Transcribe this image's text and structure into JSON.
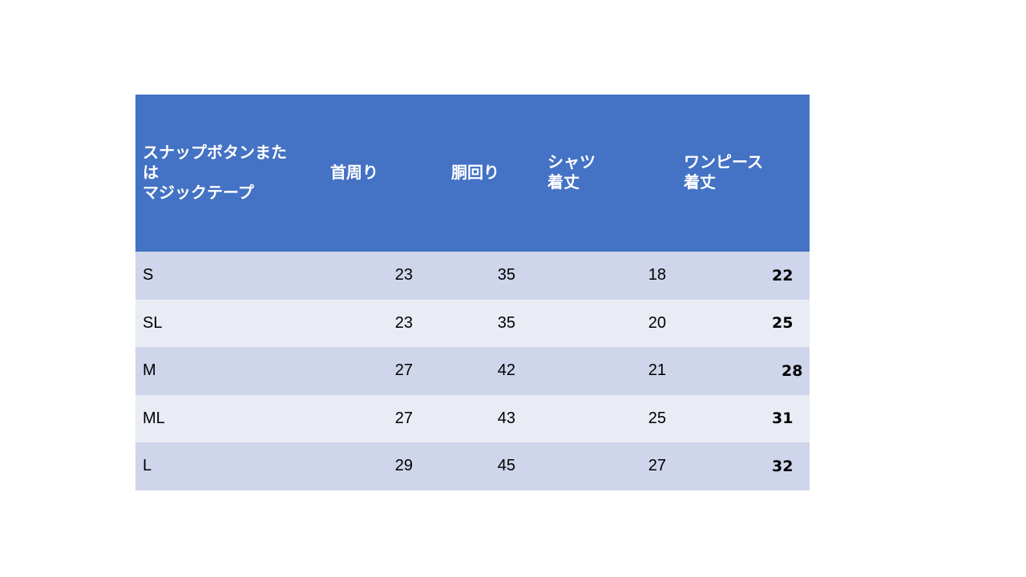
{
  "table": {
    "headers": [
      "スナップボタンまた\nは\nマジックテープ",
      "首周り",
      "胴回り",
      "シャツ\n着丈",
      "ワンピース\n着丈"
    ],
    "rows": [
      {
        "size": "S",
        "neck": "23",
        "waist": "35",
        "shirt_length": "18",
        "dress_length": "22"
      },
      {
        "size": "SL",
        "neck": "23",
        "waist": "35",
        "shirt_length": "20",
        "dress_length": "25"
      },
      {
        "size": "M",
        "neck": "27",
        "waist": "42",
        "shirt_length": "21",
        "dress_length": "28"
      },
      {
        "size": "ML",
        "neck": "27",
        "waist": "43",
        "shirt_length": "25",
        "dress_length": "31"
      },
      {
        "size": "L",
        "neck": "29",
        "waist": "45",
        "shirt_length": "27",
        "dress_length": "32"
      }
    ]
  },
  "colors": {
    "header_bg": "#4472c4",
    "row_odd_bg": "#cfd5ea",
    "row_even_bg": "#e9ebf5",
    "header_text": "#ffffff"
  }
}
